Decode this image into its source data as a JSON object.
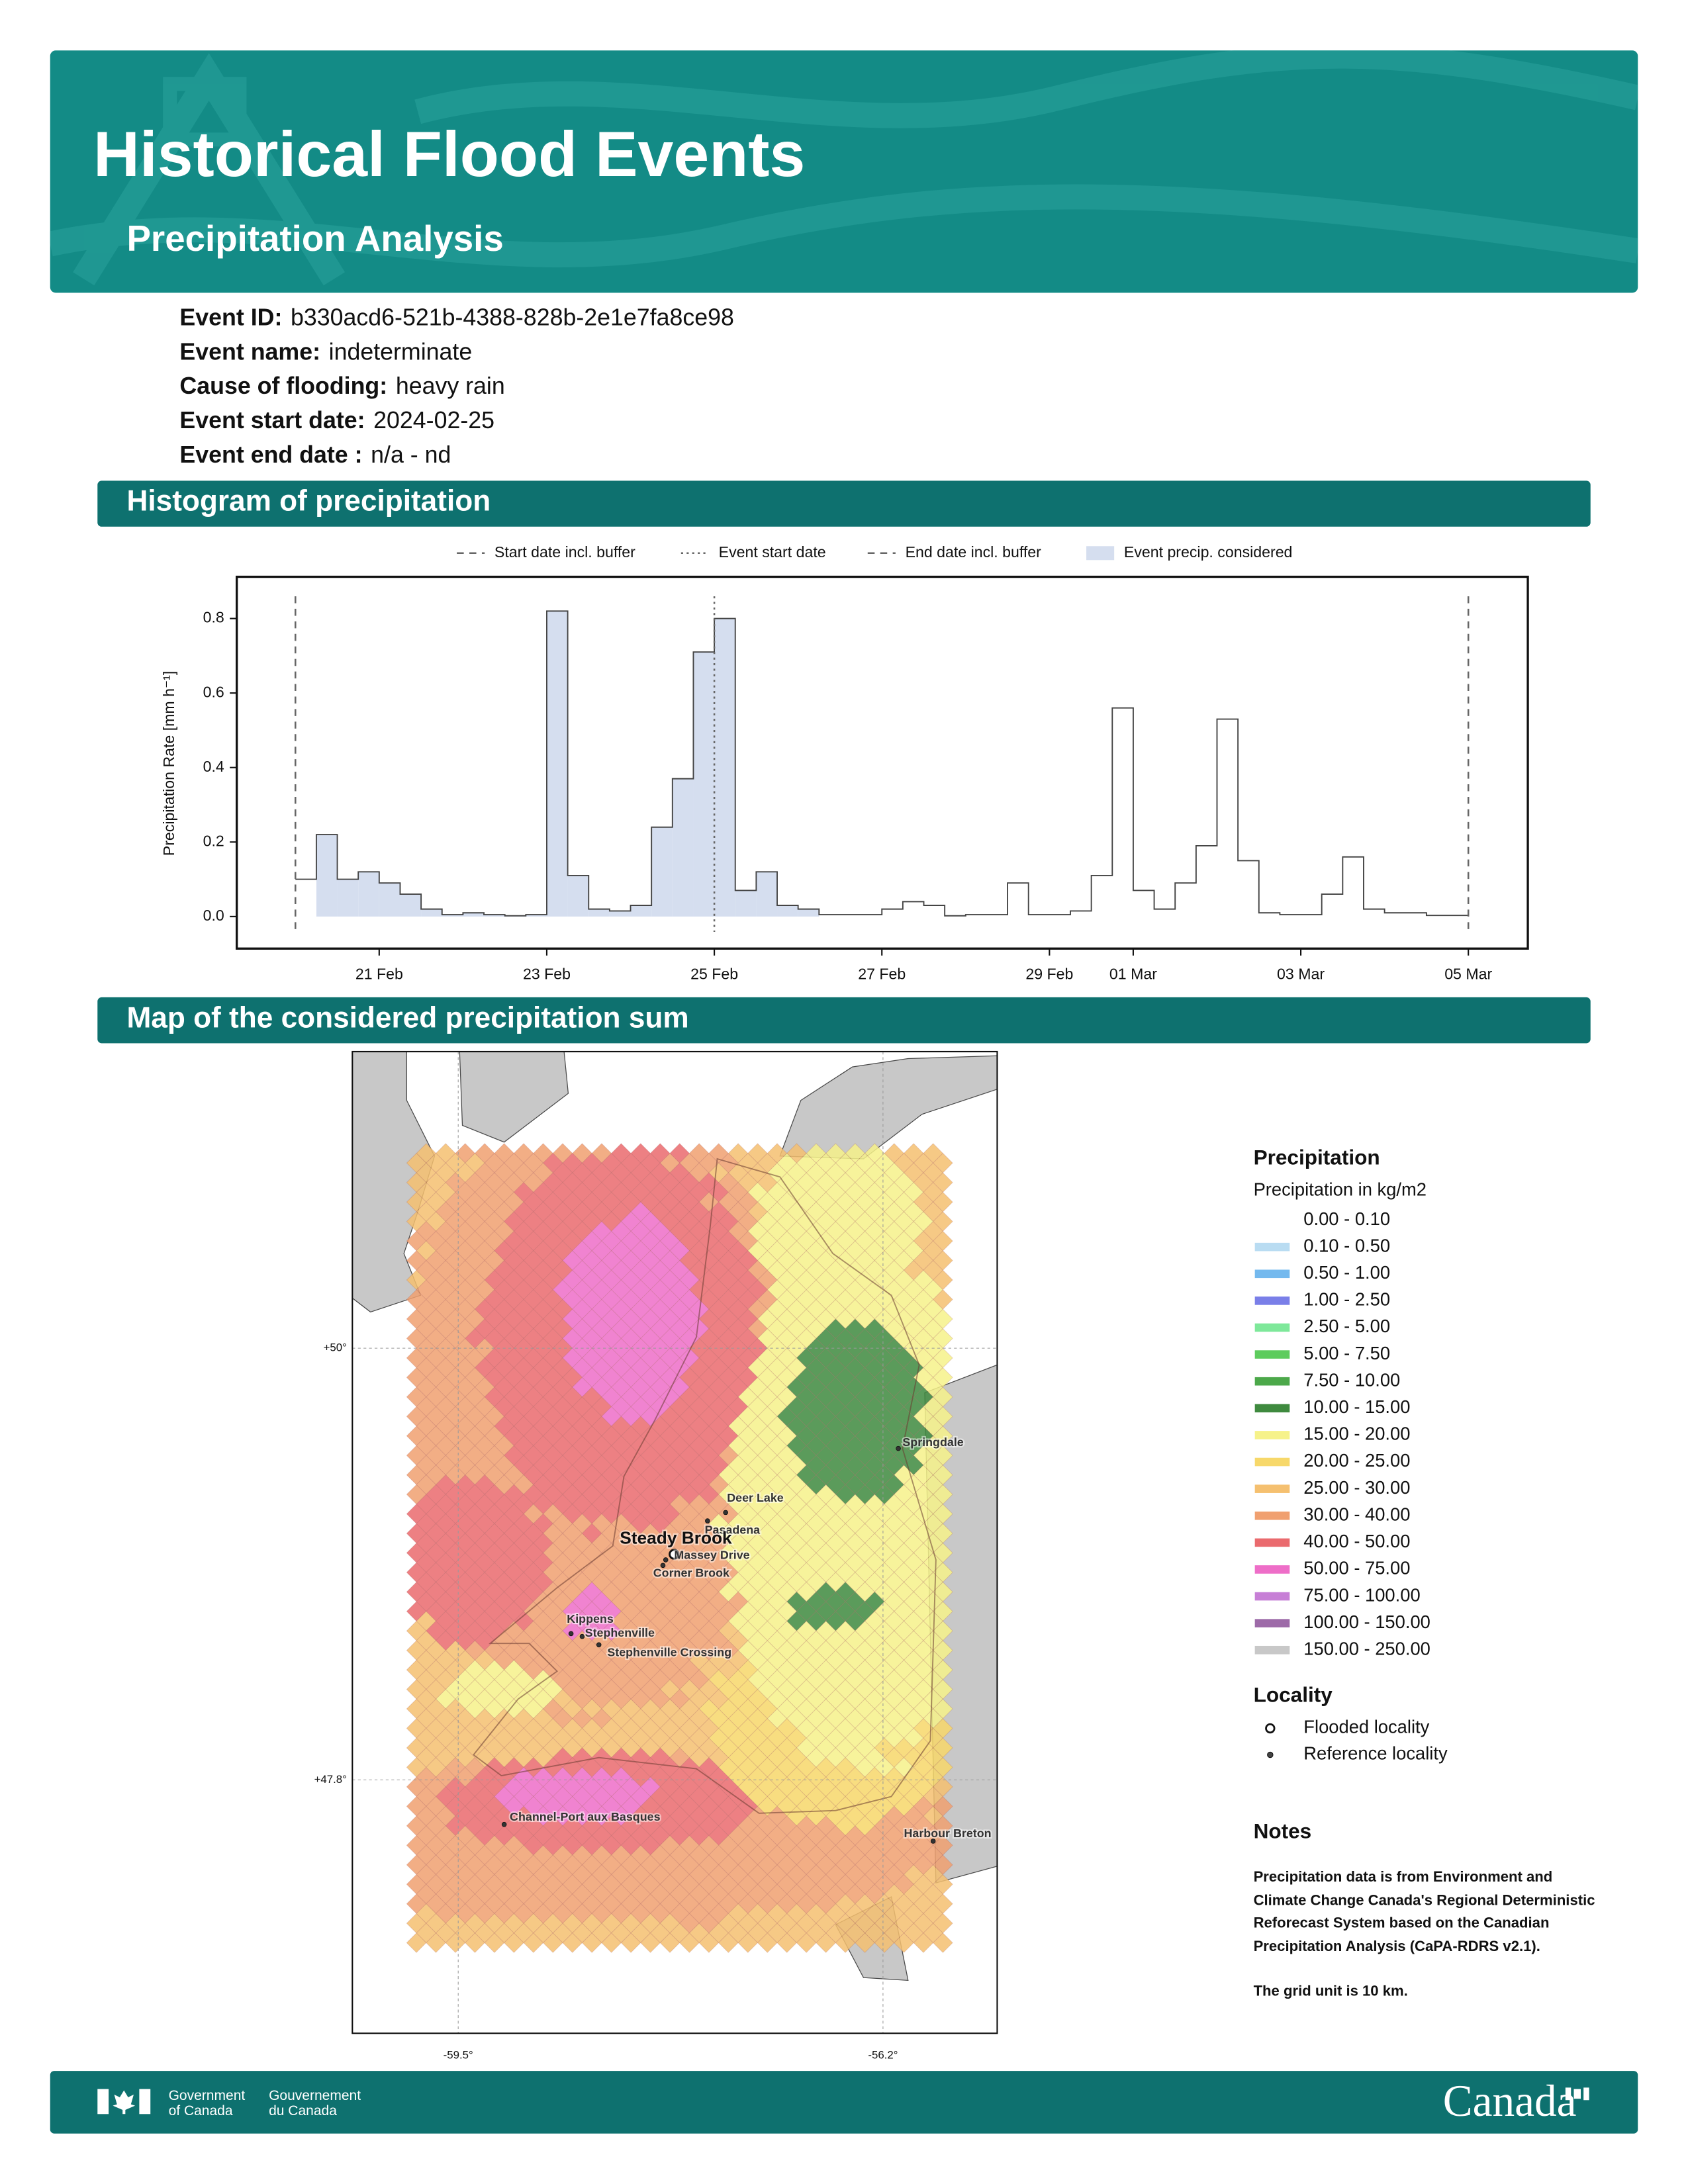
{
  "header": {
    "title": "Historical Flood Events",
    "subtitle": "Precipitation Analysis"
  },
  "event_info": [
    {
      "label": "Event ID:",
      "value": "b330acd6-521b-4388-828b-2e1e7fa8ce98"
    },
    {
      "label": "Event name:",
      "value": "indeterminate"
    },
    {
      "label": "Cause of flooding:",
      "value": "heavy rain"
    },
    {
      "label": "Event start date:",
      "value": "2024-02-25"
    },
    {
      "label": "Event end date :",
      "value": "n/a - nd"
    }
  ],
  "sections": [
    "Histogram of precipitation",
    "Map of the considered precipitation sum"
  ],
  "chart_data": {
    "type": "histogram",
    "bins": [
      0,
      0.25,
      0.5,
      0.75,
      1,
      1.25,
      1.5,
      1.75,
      2,
      2.25,
      2.5,
      2.75,
      3,
      3.25,
      3.5,
      3.75,
      4,
      4.25,
      4.5,
      4.75,
      5,
      5.25,
      5.5,
      5.75,
      6,
      6.25,
      6.5,
      6.75,
      7,
      7.25,
      7.5,
      7.75,
      8,
      8.25,
      8.5,
      8.75,
      9,
      9.25,
      9.5,
      9.75,
      10,
      10.25,
      10.5,
      10.75,
      11,
      11.25,
      11.5,
      11.75,
      12,
      12.25,
      12.5,
      12.75,
      13,
      13.25,
      13.5,
      13.75,
      14
    ],
    "values": [
      0.1,
      0.22,
      0.1,
      0.12,
      0.09,
      0.06,
      0.02,
      0.005,
      0.01,
      0.005,
      0.002,
      0.005,
      0.82,
      0.11,
      0.02,
      0.015,
      0.03,
      0.24,
      0.37,
      0.71,
      0.8,
      0.07,
      0.12,
      0.03,
      0.02,
      0.005,
      0.005,
      0.005,
      0.02,
      0.04,
      0.03,
      0.002,
      0.005,
      0.005,
      0.09,
      0.005,
      0.005,
      0.015,
      0.11,
      0.56,
      0.07,
      0.02,
      0.09,
      0.19,
      0.53,
      0.15,
      0.01,
      0.005,
      0.005,
      0.06,
      0.16,
      0.02,
      0.01,
      0.01,
      0.003,
      0.003
    ],
    "color": "#d5deef",
    "line_color": "#444444",
    "xlim": [
      -0.7,
      14.71
    ],
    "ylim": [
      -0.086,
      0.912
    ],
    "xticks": [
      {
        "value": 1,
        "label": "21 Feb"
      },
      {
        "value": 3,
        "label": "23 Feb"
      },
      {
        "value": 5,
        "label": "25 Feb"
      },
      {
        "value": 7,
        "label": "27 Feb"
      },
      {
        "value": 9,
        "label": "29 Feb"
      },
      {
        "value": 10,
        "label": "01 Mar"
      },
      {
        "value": 12,
        "label": "03 Mar"
      },
      {
        "value": 14,
        "label": "05 Mar"
      }
    ],
    "yticks": [
      {
        "value": 0,
        "label": "0.0"
      },
      {
        "value": 0.2,
        "label": "0.2"
      },
      {
        "value": 0.4,
        "label": "0.4"
      },
      {
        "value": 0.6,
        "label": "0.6"
      },
      {
        "value": 0.8,
        "label": "0.8"
      }
    ],
    "y_label": "Precipitation Rate [mm h⁻¹]",
    "markers": [
      {
        "name": "Start date incl. buffer",
        "x": 0,
        "style": "dashed"
      },
      {
        "name": "Event start date",
        "x": 5,
        "style": "dotted"
      },
      {
        "name": "End date incl. buffer",
        "x": 14,
        "style": "dashed"
      }
    ],
    "shade": {
      "name": "Event precip. considered",
      "range": [
        0.25,
        6.25
      ]
    }
  },
  "map": {
    "title": "Precipitation",
    "subtitle": "Precipitation in kg/m2",
    "classes": [
      {
        "label": "0.00 - 0.10",
        "color": "#ffffff"
      },
      {
        "label": "0.10 - 0.50",
        "color": "#b9dcf2"
      },
      {
        "label": "0.50 - 1.00",
        "color": "#74b9ee"
      },
      {
        "label": "1.00 - 2.50",
        "color": "#7a7fe8"
      },
      {
        "label": "2.50 - 5.00",
        "color": "#7ee89a"
      },
      {
        "label": "5.00 - 7.50",
        "color": "#5dcc5d"
      },
      {
        "label": "7.50 - 10.00",
        "color": "#4ca84a"
      },
      {
        "label": "10.00 - 15.00",
        "color": "#3f8a3f"
      },
      {
        "label": "15.00 - 20.00",
        "color": "#f6f28a"
      },
      {
        "label": "20.00 - 25.00",
        "color": "#f7d86a"
      },
      {
        "label": "25.00 - 30.00",
        "color": "#f5c070"
      },
      {
        "label": "30.00 - 40.00",
        "color": "#f0a070"
      },
      {
        "label": "40.00 - 50.00",
        "color": "#ea6a6e"
      },
      {
        "label": "50.00 - 75.00",
        "color": "#ee6ec8"
      },
      {
        "label": "75.00 - 100.00",
        "color": "#c77fd6"
      },
      {
        "label": "100.00 - 150.00",
        "color": "#9d6aa8"
      },
      {
        "label": "150.00 - 250.00",
        "color": "#c8c8c8"
      }
    ],
    "locality_title": "Locality",
    "locality_types": [
      "Flooded locality",
      "Reference locality"
    ],
    "localities": [
      {
        "name": "Springdale",
        "flooded": false
      },
      {
        "name": "Deer Lake",
        "flooded": false
      },
      {
        "name": "Pasadena",
        "flooded": false
      },
      {
        "name": "Steady Brook",
        "flooded": true
      },
      {
        "name": "Massey Drive",
        "flooded": false
      },
      {
        "name": "Corner Brook",
        "flooded": false
      },
      {
        "name": "Kippens",
        "flooded": false
      },
      {
        "name": "Stephenville",
        "flooded": false
      },
      {
        "name": "Stephenville Crossing",
        "flooded": false
      },
      {
        "name": "Channel-Port aux Basques",
        "flooded": false
      },
      {
        "name": "Harbour Breton",
        "flooded": false
      }
    ],
    "lat_lines": [
      {
        "value": 50,
        "label": "+50°"
      },
      {
        "value": 47.8,
        "label": "+47.8°"
      }
    ],
    "lon_lines": [
      {
        "value": -59.5,
        "label": "-59.5°"
      },
      {
        "value": -56.2,
        "label": "-56.2°"
      }
    ]
  },
  "notes": {
    "title": "Notes",
    "paragraphs": [
      "Precipitation data is from Environment and Climate Change Canada's Regional Deterministic Reforecast System based on the Canadian Precipitation Analysis (CaPA-RDRS v2.1).",
      "The grid unit is 10 km."
    ]
  },
  "footer": {
    "gov_en": [
      "Government",
      "of Canada"
    ],
    "gov_fr": [
      "Gouvernement",
      "du Canada"
    ],
    "wordmark": "Canada"
  }
}
